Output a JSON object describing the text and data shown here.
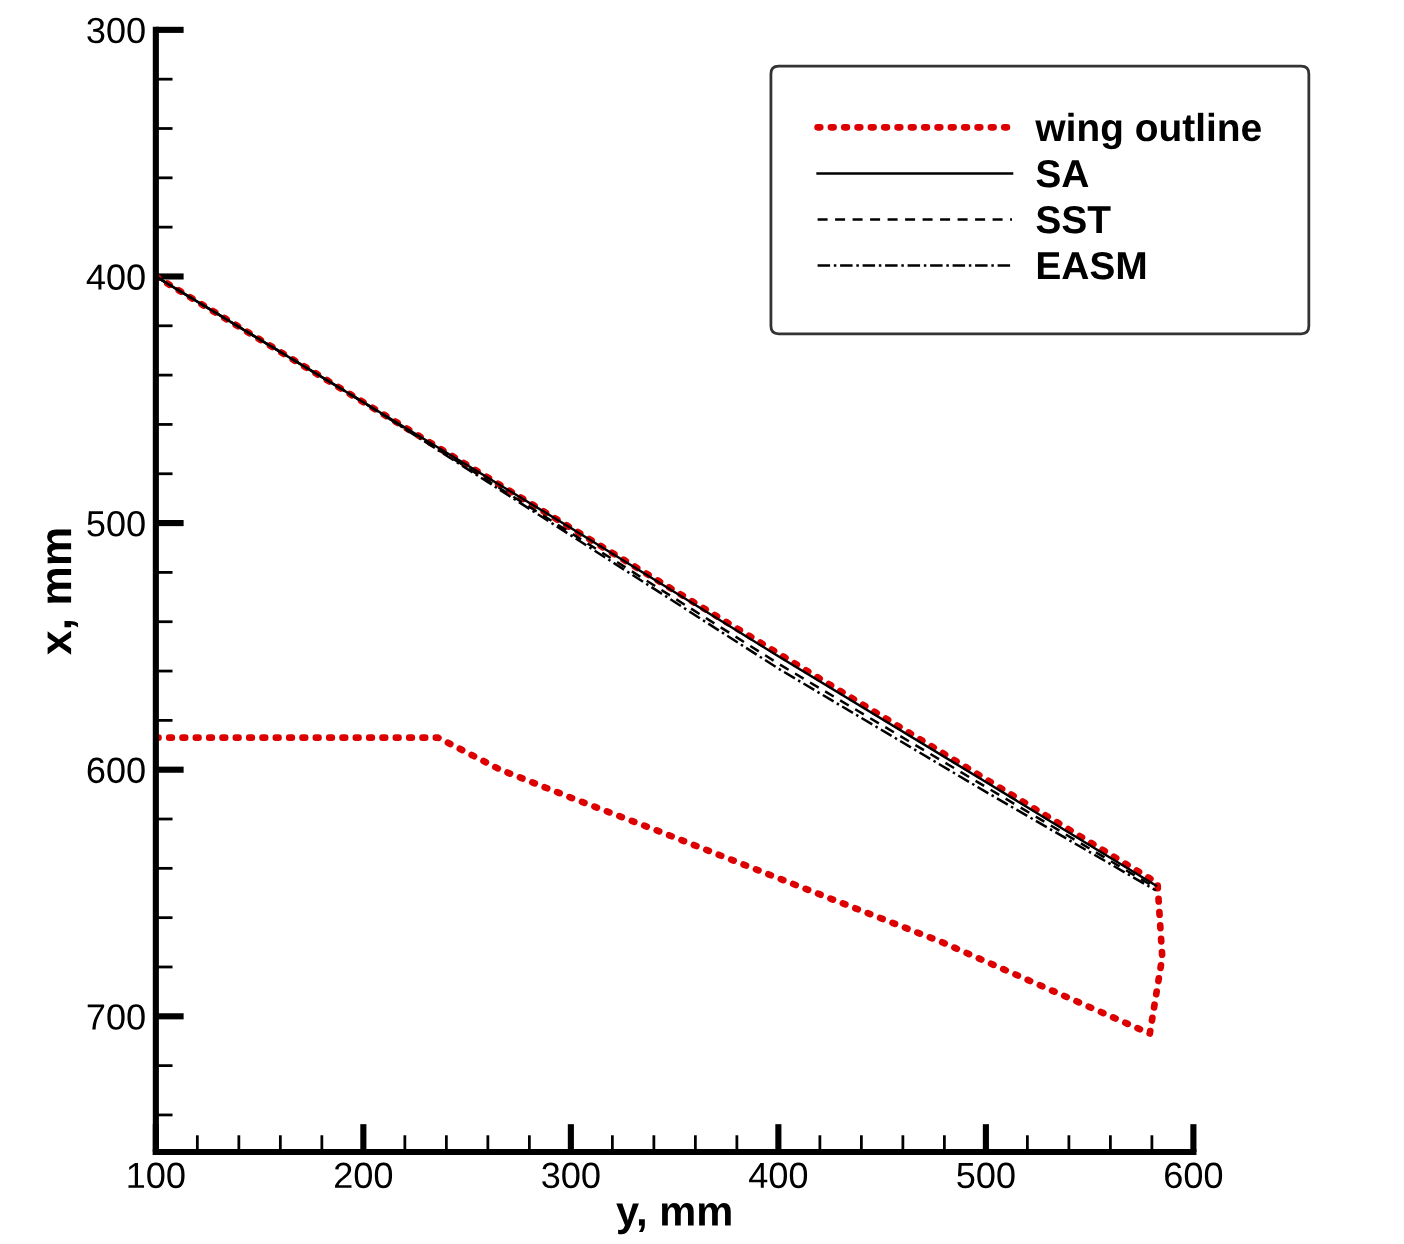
{
  "chart_data": {
    "type": "line",
    "xlabel": "y, mm",
    "ylabel": "x, mm",
    "xlim": [
      100,
      600
    ],
    "xticks": [
      100,
      200,
      300,
      400,
      500,
      600
    ],
    "ylim": [
      755,
      300
    ],
    "yticks": [
      300,
      400,
      500,
      600,
      700
    ],
    "legend": "top right",
    "grid": false,
    "marker": "none",
    "series": [
      {
        "name": "wing outline",
        "color": "#dd0000",
        "line_style": "dotted",
        "x": [
          100,
          236,
          266,
          299,
          339.5,
          400,
          479,
          579,
          585,
          582.7,
          100
        ],
        "values": [
          587,
          587,
          600,
          611,
          624,
          644,
          670,
          707,
          676,
          646,
          400
        ]
      },
      {
        "name": "SA",
        "color": "#000000",
        "line_style": "solid",
        "x": [
          100,
          200,
          300,
          400,
          500,
          582
        ],
        "values": [
          400,
          451,
          502,
          554,
          605,
          647
        ]
      },
      {
        "name": "SST",
        "color": "#000000",
        "line_style": "dashed",
        "x": [
          100,
          200,
          300,
          400,
          500,
          582
        ],
        "values": [
          400,
          451,
          504,
          557,
          607,
          648
        ]
      },
      {
        "name": "EASM",
        "color": "#000000",
        "line_style": "dashdot",
        "x": [
          100,
          200,
          300,
          400,
          500,
          582
        ],
        "values": [
          400,
          451,
          505,
          559,
          609,
          649
        ]
      }
    ]
  }
}
